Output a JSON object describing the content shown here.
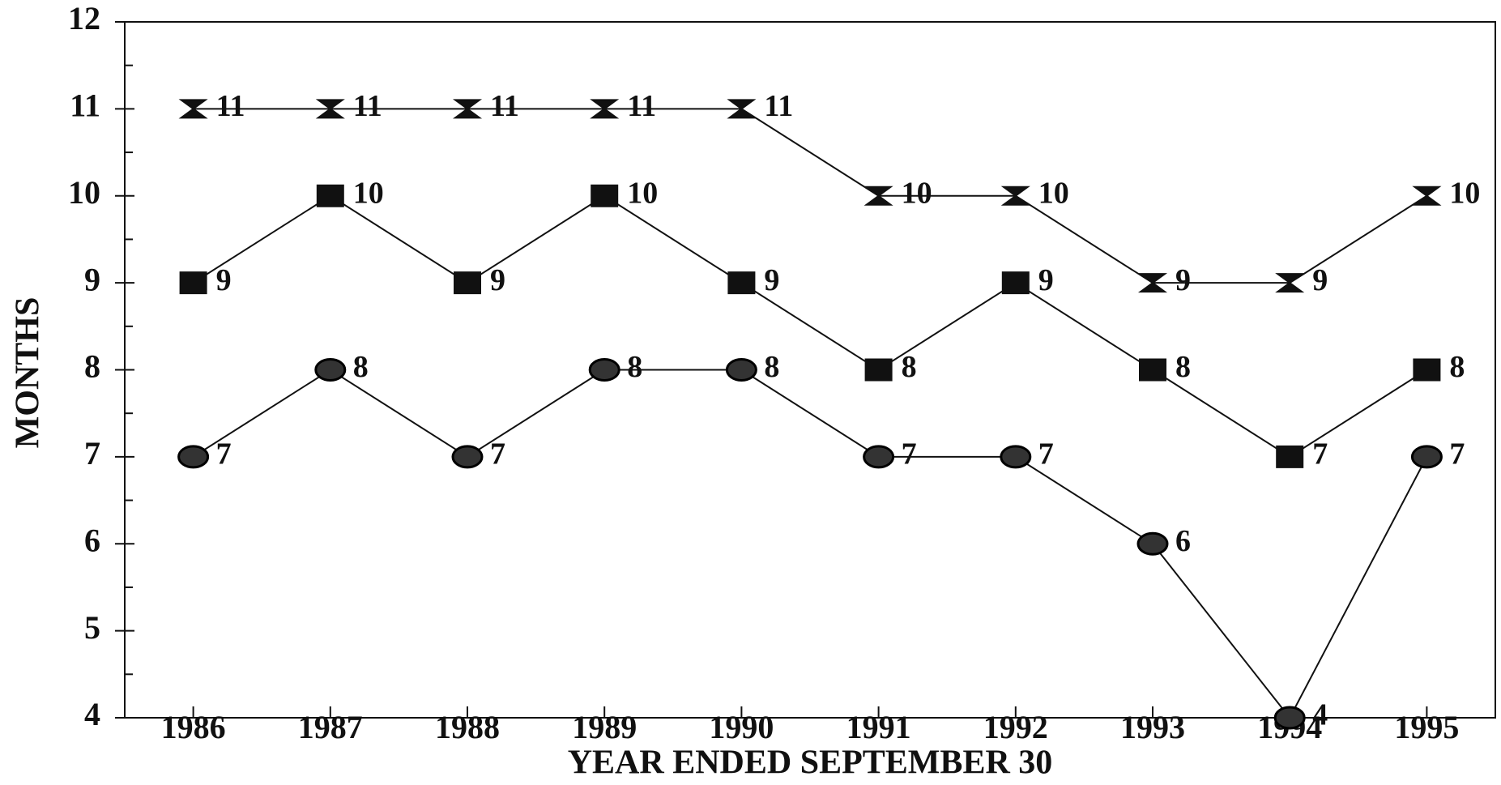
{
  "chart_data": {
    "type": "line",
    "x_label": "YEAR ENDED SEPTEMBER 30",
    "y_label": "MONTHS",
    "categories": [
      "1986",
      "1987",
      "1988",
      "1989",
      "1990",
      "1991",
      "1992",
      "1993",
      "1994",
      "1995"
    ],
    "series": [
      {
        "marker": "hourglass",
        "color": "#111111",
        "values": [
          11,
          11,
          11,
          11,
          11,
          10,
          10,
          9,
          9,
          10
        ]
      },
      {
        "marker": "square",
        "color": "#111111",
        "values": [
          9,
          10,
          9,
          10,
          9,
          8,
          9,
          8,
          7,
          8
        ]
      },
      {
        "marker": "circle",
        "color": "#333333",
        "values": [
          7,
          8,
          7,
          8,
          8,
          7,
          7,
          6,
          4,
          7
        ]
      }
    ],
    "ylim": [
      4,
      12
    ],
    "yticks": [
      4,
      5,
      6,
      7,
      8,
      9,
      10,
      11,
      12
    ],
    "grid": false
  }
}
